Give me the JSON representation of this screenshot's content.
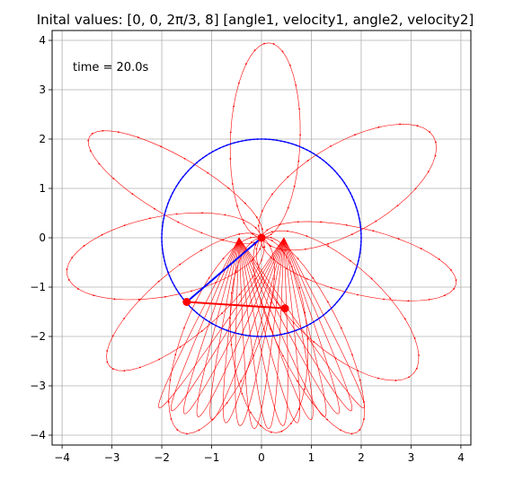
{
  "chart_data": {
    "type": "line",
    "title": "Inital values:  [0, 0, 2π/3, 8]  [angle1, velocity1, angle2, velocity2]",
    "annotation": "time = 20.0s",
    "xlabel": "",
    "ylabel": "",
    "xlim": [
      -4.2,
      4.2
    ],
    "ylim": [
      -4.2,
      4.2
    ],
    "xticks": [
      -4,
      -3,
      -2,
      -1,
      0,
      1,
      2,
      3,
      4
    ],
    "yticks": [
      -4,
      -3,
      -2,
      -1,
      0,
      1,
      2,
      3,
      4
    ],
    "grid": true,
    "colors": {
      "trace": "#ff0000",
      "circle": "#0000ff",
      "rod1": "#0000ff",
      "rod2": "#ff0000",
      "grid": "#b0b0b0"
    },
    "series": [
      {
        "kind": "circle-trace",
        "center": [
          0,
          0
        ],
        "radius": 2.0
      },
      {
        "kind": "pendulum",
        "pivot": [
          0,
          0
        ],
        "bob1": [
          -1.5,
          -1.3
        ],
        "bob2": [
          0.47,
          -1.43
        ]
      },
      {
        "kind": "trace-loops",
        "loop_tips": [
          [
            0.15,
            3.95
          ],
          [
            -3.45,
            2.05
          ],
          [
            3.45,
            2.05
          ],
          [
            -3.9,
            -0.75
          ],
          [
            3.9,
            -0.95
          ],
          [
            -3.05,
            -2.6
          ],
          [
            3.05,
            -2.75
          ],
          [
            -1.6,
            -3.95
          ],
          [
            0.3,
            -3.95
          ],
          [
            1.9,
            -3.95
          ]
        ]
      }
    ]
  }
}
